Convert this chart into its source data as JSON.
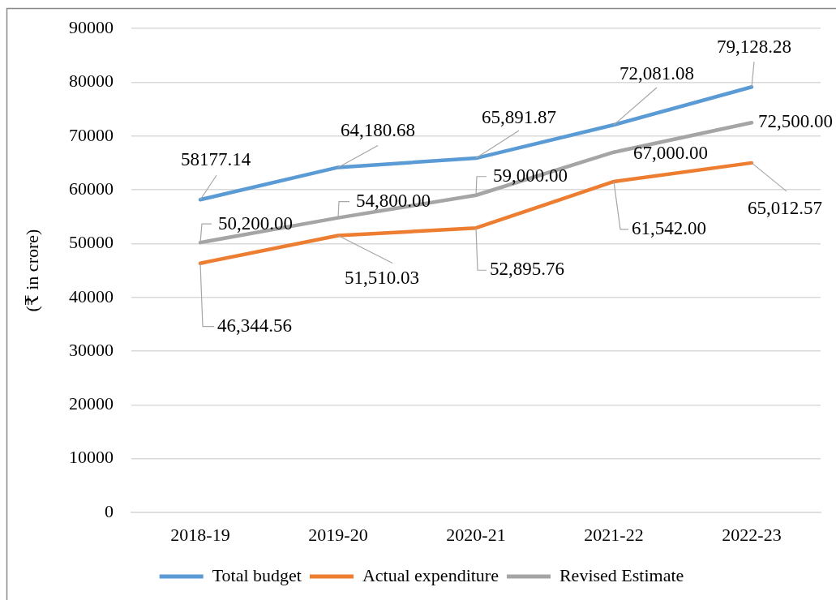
{
  "chart_data": {
    "type": "line",
    "ylabel": "(₹ in crore)",
    "categories": [
      "2018-19",
      "2019-20",
      "2020-21",
      "2021-22",
      "2022-23"
    ],
    "series": [
      {
        "name": "Total budget",
        "color": "#5b9bd5",
        "values": [
          58177.14,
          64180.68,
          65891.87,
          72081.08,
          79128.28
        ],
        "value_labels": [
          "58177.14",
          "64,180.68",
          "65,891.87",
          "72,081.08",
          "79,128.28"
        ]
      },
      {
        "name": "Actual expenditure",
        "color": "#ed7d31",
        "values": [
          46344.56,
          51510.03,
          52895.76,
          61542.0,
          65012.57
        ],
        "value_labels": [
          "46,344.56",
          "51,510.03",
          "52,895.76",
          "61,542.00",
          "65,012.57"
        ]
      },
      {
        "name": "Revised Estimate",
        "color": "#a5a5a5",
        "values": [
          50200,
          54800,
          59000,
          67000,
          72500
        ],
        "value_labels": [
          "50,200.00",
          "54,800.00",
          "59,000.00",
          "67,000.00",
          "72,500.00"
        ]
      }
    ],
    "ylim": [
      0,
      90000
    ],
    "yticks": [
      0,
      10000,
      20000,
      30000,
      40000,
      50000,
      60000,
      70000,
      80000,
      90000
    ],
    "grid": "y",
    "legend": "bottom",
    "marker": "none",
    "line_style": "solid"
  }
}
